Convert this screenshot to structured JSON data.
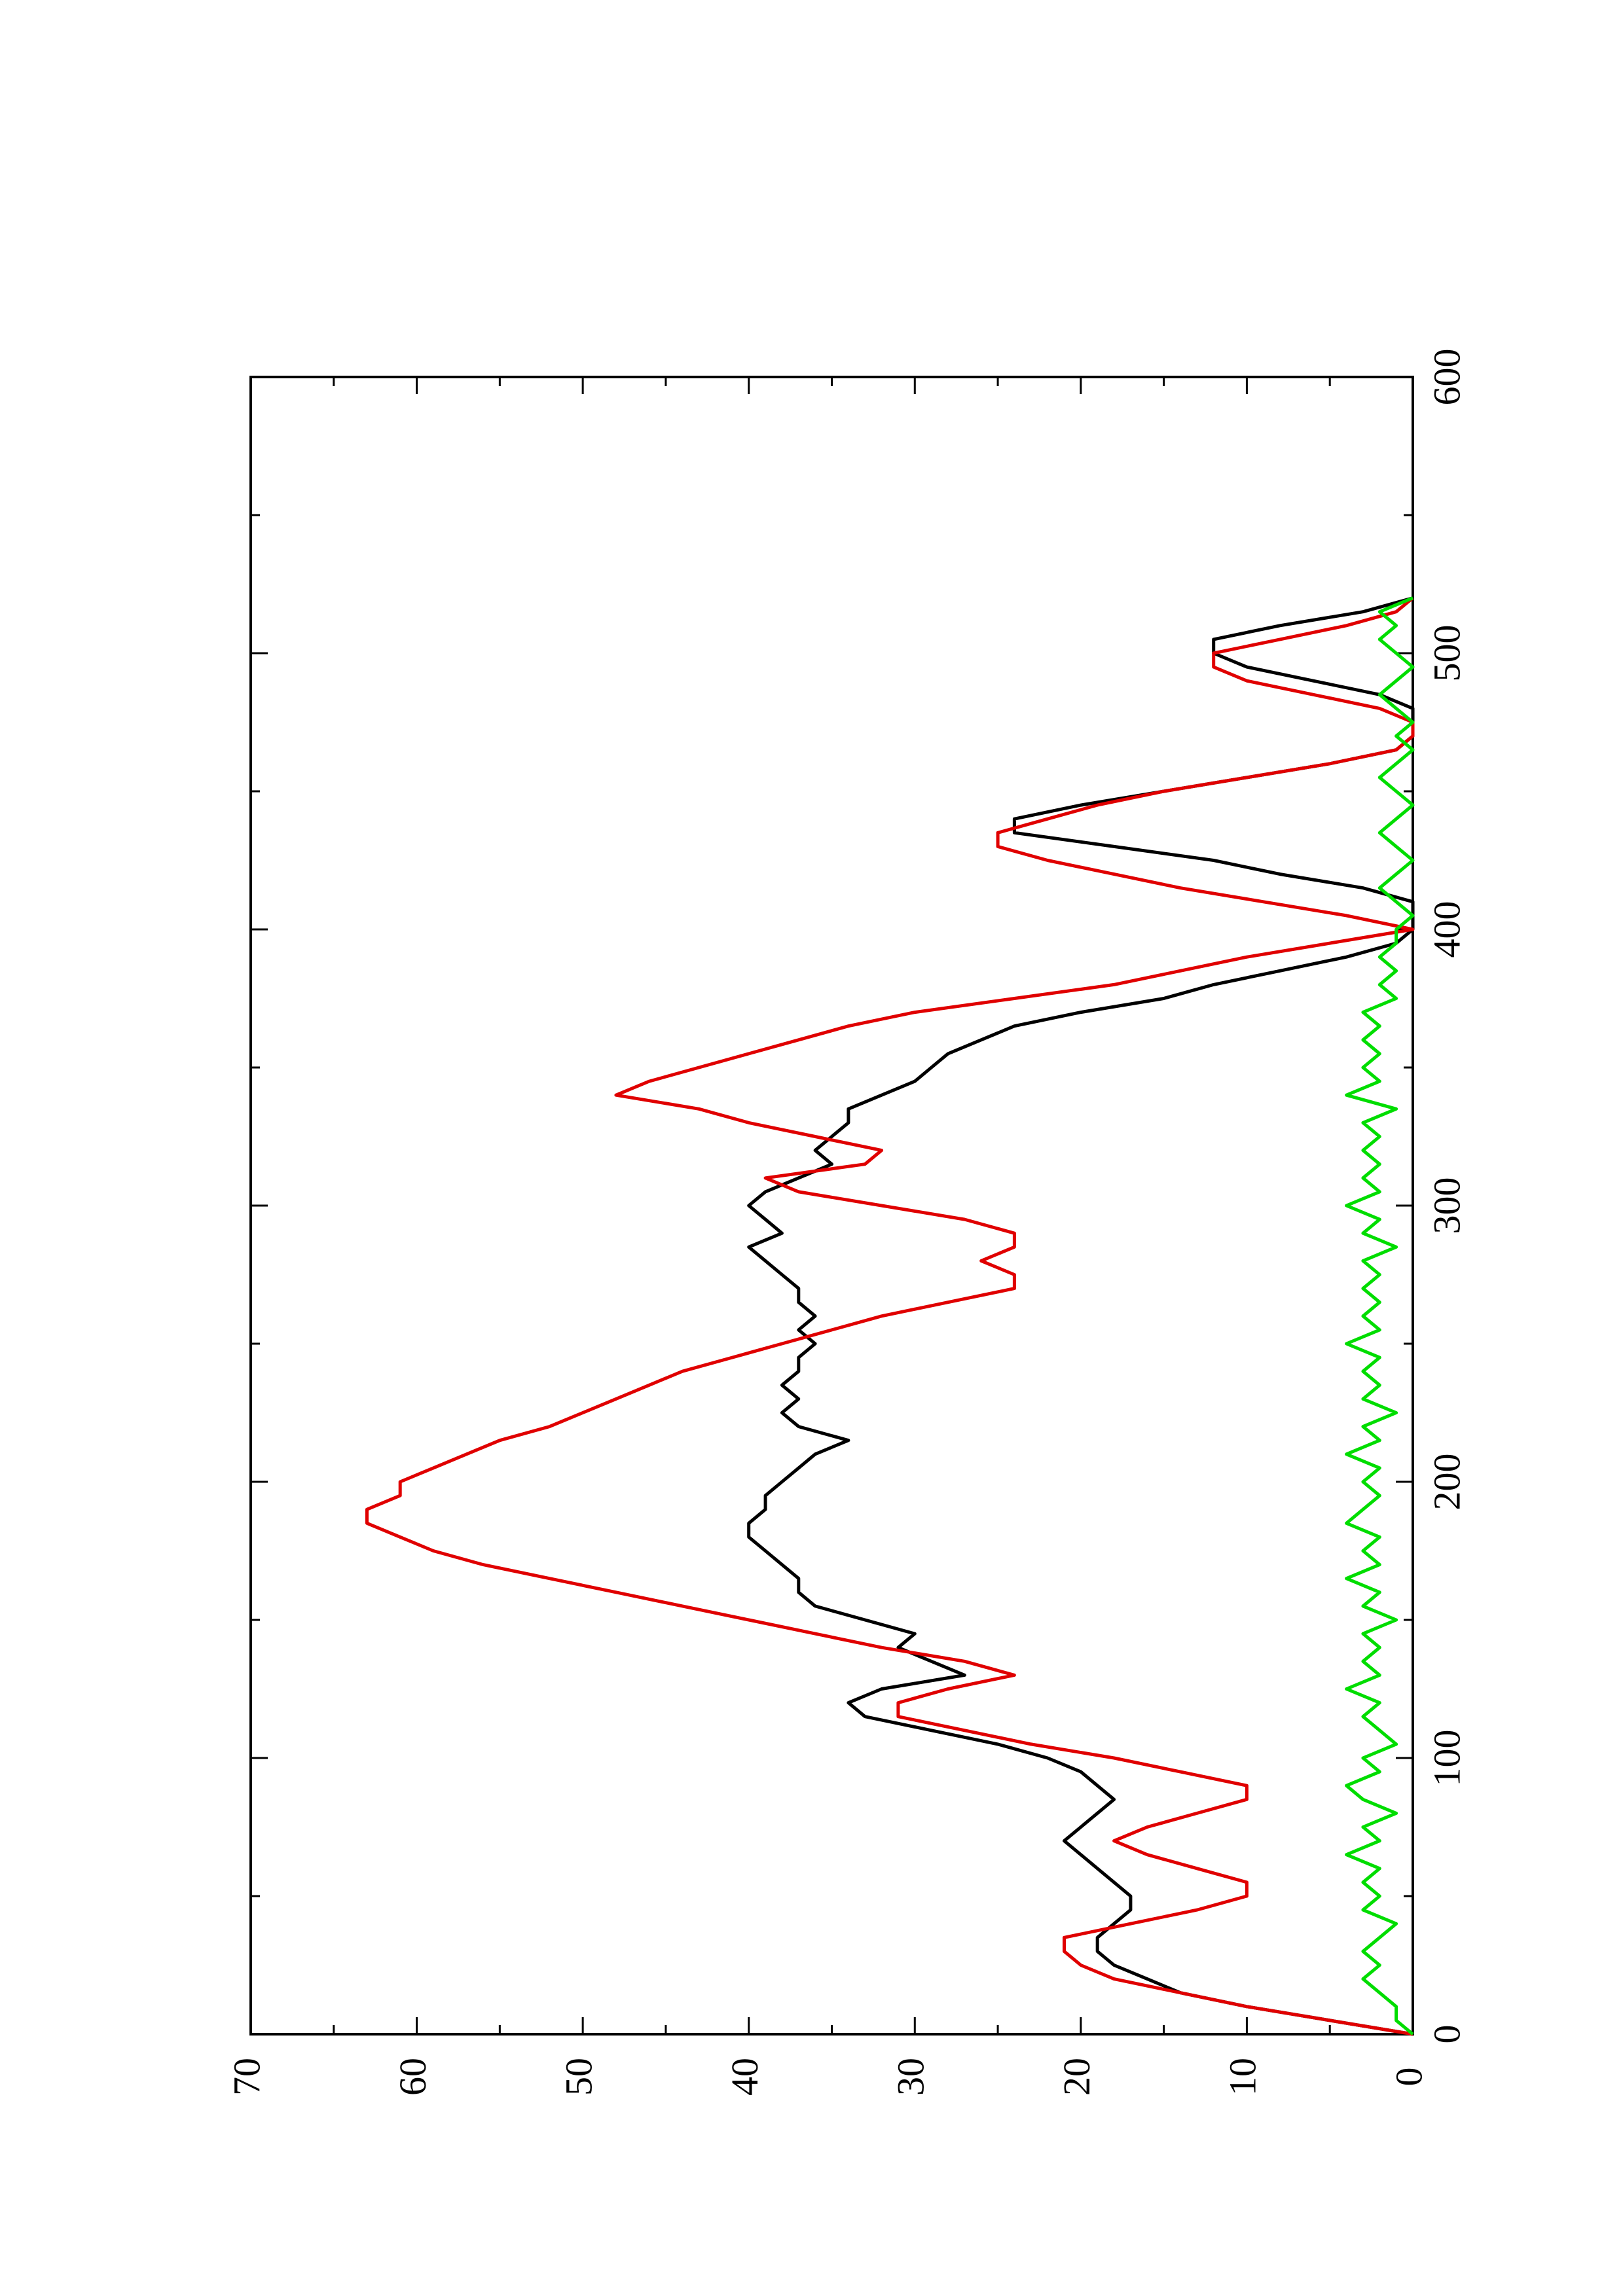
{
  "chart_data": {
    "type": "line",
    "orientation": "rotated 90° counter-clockwise (page is landscape plot printed in portrait)",
    "title": "",
    "xlabel": "",
    "ylabel": "",
    "xlim": [
      0,
      600
    ],
    "ylim": [
      0,
      70
    ],
    "x_ticks": [
      "0",
      "100",
      "200",
      "300",
      "400",
      "500",
      "600"
    ],
    "y_ticks": [
      "0",
      "10",
      "20",
      "30",
      "40",
      "50",
      "60",
      "70"
    ],
    "grid": false,
    "legend": "none",
    "colors": {
      "series_black": "#000000",
      "series_red": "#e00000",
      "series_green": "#00dd00",
      "axes": "#000000"
    },
    "series": [
      {
        "color": "#000000",
        "x": [
          0,
          5,
          10,
          15,
          20,
          25,
          30,
          35,
          40,
          45,
          50,
          55,
          60,
          65,
          70,
          75,
          80,
          85,
          90,
          95,
          100,
          105,
          110,
          115,
          120,
          125,
          130,
          135,
          140,
          145,
          150,
          155,
          160,
          165,
          170,
          175,
          180,
          185,
          190,
          195,
          200,
          205,
          210,
          215,
          220,
          225,
          230,
          235,
          240,
          245,
          250,
          255,
          260,
          265,
          270,
          275,
          280,
          285,
          290,
          295,
          300,
          305,
          310,
          315,
          320,
          325,
          330,
          335,
          340,
          345,
          350,
          355,
          360,
          365,
          370,
          375,
          380,
          385,
          390,
          395,
          400,
          405,
          410,
          415,
          420,
          425,
          430,
          435,
          440,
          445,
          450,
          455,
          460,
          465,
          470,
          475,
          480,
          485,
          490,
          495,
          500,
          505,
          510,
          515,
          520
        ],
        "y": [
          0,
          5,
          10,
          14,
          16,
          18,
          19,
          19,
          18,
          17,
          17,
          18,
          19,
          20,
          21,
          20,
          19,
          18,
          19,
          20,
          22,
          25,
          29,
          33,
          34,
          32,
          27,
          29,
          31,
          30,
          33,
          36,
          37,
          37,
          38,
          39,
          40,
          40,
          39,
          39,
          38,
          37,
          36,
          34,
          37,
          38,
          37,
          38,
          37,
          37,
          36,
          37,
          36,
          37,
          37,
          38,
          39,
          40,
          38,
          39,
          40,
          39,
          37,
          35,
          36,
          35,
          34,
          34,
          32,
          30,
          29,
          28,
          26,
          24,
          20,
          15,
          12,
          8,
          4,
          1,
          0,
          0,
          0,
          3,
          8,
          12,
          18,
          24,
          24,
          20,
          15,
          10,
          5,
          1,
          0,
          0,
          0,
          2,
          6,
          10,
          12,
          12,
          8,
          3,
          0
        ]
      },
      {
        "color": "#e00000",
        "x": [
          0,
          5,
          10,
          15,
          20,
          25,
          30,
          35,
          40,
          45,
          50,
          55,
          60,
          65,
          70,
          75,
          80,
          85,
          90,
          95,
          100,
          105,
          110,
          115,
          120,
          125,
          130,
          135,
          140,
          145,
          150,
          155,
          160,
          165,
          170,
          175,
          180,
          185,
          190,
          195,
          200,
          205,
          210,
          215,
          220,
          225,
          230,
          235,
          240,
          245,
          250,
          255,
          260,
          265,
          270,
          275,
          280,
          285,
          290,
          295,
          300,
          305,
          310,
          315,
          320,
          325,
          330,
          335,
          340,
          345,
          350,
          355,
          360,
          365,
          370,
          375,
          380,
          385,
          390,
          395,
          400,
          405,
          410,
          415,
          420,
          425,
          430,
          435,
          440,
          445,
          450,
          455,
          460,
          465,
          470,
          475,
          480,
          485,
          490,
          495,
          500,
          505,
          510,
          515,
          520
        ],
        "y": [
          0,
          5,
          10,
          14,
          18,
          20,
          21,
          21,
          17,
          13,
          10,
          10,
          13,
          16,
          18,
          16,
          13,
          10,
          10,
          14,
          18,
          23,
          27,
          31,
          31,
          28,
          24,
          27,
          32,
          36,
          40,
          44,
          48,
          52,
          56,
          59,
          61,
          63,
          63,
          61,
          61,
          59,
          57,
          55,
          52,
          50,
          48,
          46,
          44,
          41,
          38,
          35,
          32,
          28,
          24,
          24,
          26,
          24,
          24,
          27,
          32,
          37,
          39,
          33,
          32,
          36,
          40,
          43,
          48,
          46,
          43,
          40,
          37,
          34,
          30,
          24,
          18,
          14,
          10,
          5,
          0,
          4,
          9,
          14,
          18,
          22,
          25,
          25,
          22,
          19,
          15,
          10,
          5,
          1,
          0,
          0,
          2,
          6,
          10,
          12,
          12,
          8,
          4,
          1,
          0
        ]
      },
      {
        "color": "#00dd00",
        "x": [
          0,
          5,
          10,
          15,
          20,
          25,
          30,
          35,
          40,
          45,
          50,
          55,
          60,
          65,
          70,
          75,
          80,
          85,
          90,
          95,
          100,
          105,
          110,
          115,
          120,
          125,
          130,
          135,
          140,
          145,
          150,
          155,
          160,
          165,
          170,
          175,
          180,
          185,
          190,
          195,
          200,
          205,
          210,
          215,
          220,
          225,
          230,
          235,
          240,
          245,
          250,
          255,
          260,
          265,
          270,
          275,
          280,
          285,
          290,
          295,
          300,
          305,
          310,
          315,
          320,
          325,
          330,
          335,
          340,
          345,
          350,
          355,
          360,
          365,
          370,
          375,
          380,
          385,
          390,
          395,
          400,
          405,
          410,
          415,
          420,
          425,
          430,
          435,
          440,
          445,
          450,
          455,
          460,
          465,
          470,
          475,
          480,
          485,
          490,
          495,
          500,
          505,
          510,
          515,
          520
        ],
        "y": [
          0,
          1,
          1,
          2,
          3,
          2,
          3,
          2,
          1,
          3,
          2,
          3,
          2,
          4,
          2,
          3,
          1,
          3,
          4,
          2,
          3,
          1,
          2,
          3,
          2,
          4,
          2,
          3,
          2,
          3,
          1,
          3,
          2,
          4,
          2,
          3,
          2,
          4,
          3,
          2,
          3,
          2,
          4,
          2,
          3,
          1,
          3,
          2,
          3,
          2,
          4,
          2,
          3,
          2,
          3,
          2,
          3,
          1,
          3,
          2,
          4,
          2,
          3,
          2,
          3,
          2,
          3,
          1,
          4,
          2,
          3,
          2,
          3,
          2,
          3,
          1,
          2,
          1,
          2,
          1,
          1,
          0,
          1,
          2,
          1,
          0,
          1,
          2,
          1,
          0,
          1,
          2,
          1,
          0,
          1,
          0,
          1,
          2,
          1,
          0,
          1,
          2,
          1,
          2,
          0
        ]
      }
    ]
  }
}
